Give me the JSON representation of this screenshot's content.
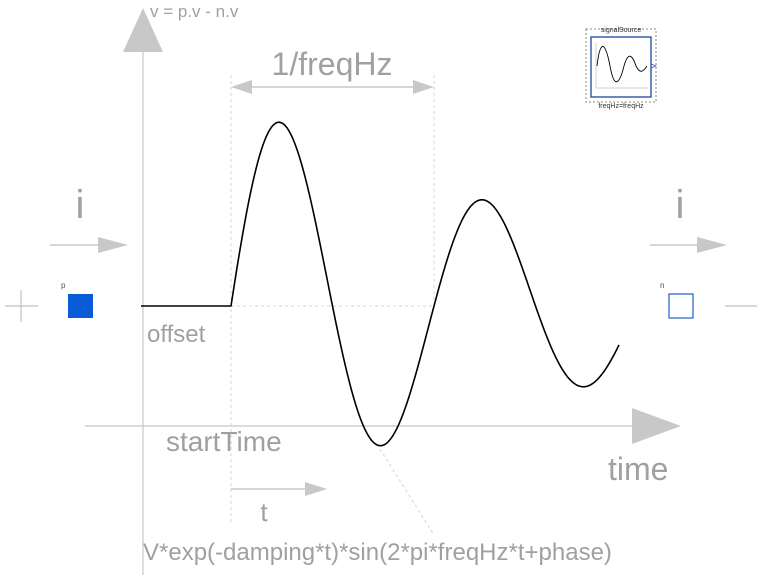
{
  "texts": {
    "v_equation": "v = p.v - n.v",
    "period": "1/freqHz",
    "current_in": "i",
    "current_out": "i",
    "pin_p": "p",
    "pin_n": "n",
    "offset": "offset",
    "start_time": "startTime",
    "time_axis": "time",
    "t": "t",
    "formula": "V*exp(-damping*t)*sin(2*pi*freqHz*t+phase)"
  },
  "icon": {
    "name": "signalSource",
    "parameter": "freqHz=freqHz"
  },
  "colors": {
    "axis": "#c0c0c0",
    "label": "#a0a0a0",
    "pin_p": "#0a5bd8",
    "pin_n": "#1f5fc0",
    "curve": "#000000"
  }
}
